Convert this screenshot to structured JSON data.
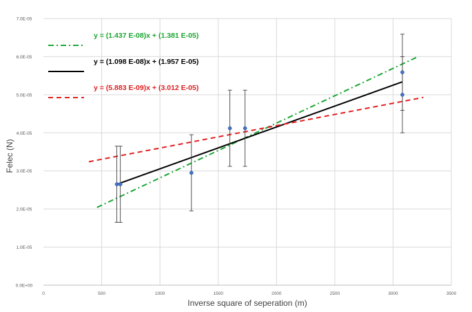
{
  "chart_data": {
    "type": "scatter",
    "title": "",
    "xlabel": "Inverse square of seperation (m)",
    "ylabel": "Felec (N)",
    "xlim": [
      0,
      3500
    ],
    "ylim": [
      0,
      7e-05
    ],
    "x_ticks": [
      0,
      500,
      1000,
      1500,
      2000,
      2500,
      3000,
      3500
    ],
    "x_tick_labels": [
      "0",
      "500",
      "1000",
      "1500",
      "2000",
      "2500",
      "3000",
      "3500"
    ],
    "y_ticks": [
      0,
      1e-05,
      2e-05,
      3e-05,
      4e-05,
      5e-05,
      6e-05,
      7e-05
    ],
    "y_tick_labels": [
      "0.0E+00",
      "1.0E-05",
      "2.0E-05",
      "3.0E-05",
      "4.0E-05",
      "5.0E-05",
      "6.0E-05",
      "7.0E-05"
    ],
    "grid": true,
    "legend_position": "top-left",
    "marker_color": "#4472C4",
    "errorbar_color": "#404040",
    "points": [
      {
        "x": 630,
        "y": 2.65e-05,
        "err_low": 1.65e-05,
        "err_high": 3.65e-05
      },
      {
        "x": 660,
        "y": 2.65e-05,
        "err_low": 1.65e-05,
        "err_high": 3.65e-05
      },
      {
        "x": 1270,
        "y": 2.95e-05,
        "err_low": 1.95e-05,
        "err_high": 3.95e-05
      },
      {
        "x": 1600,
        "y": 4.12e-05,
        "err_low": 3.12e-05,
        "err_high": 5.12e-05
      },
      {
        "x": 1730,
        "y": 4.12e-05,
        "err_low": 3.12e-05,
        "err_high": 5.12e-05
      },
      {
        "x": 3080,
        "y": 5.59e-05,
        "err_low": 4.59e-05,
        "err_high": 6.59e-05
      },
      {
        "x": 3080,
        "y": 5e-05,
        "err_low": 4e-05,
        "err_high": 6e-05
      }
    ],
    "series": [
      {
        "label": "y = (1.437 E-08)x + (1.381 E-05)",
        "slope": 1.437e-08,
        "intercept": 1.381e-05,
        "x_range": [
          460,
          3220
        ],
        "color": "#1BA532",
        "style": "dash-dot"
      },
      {
        "label": "y = (1.098 E-08)x + (1.957 E-05)",
        "slope": 1.098e-08,
        "intercept": 1.957e-05,
        "x_range": [
          630,
          3080
        ],
        "color": "#000000",
        "style": "solid"
      },
      {
        "label": "y = (5.883 E-09)x + (3.012 E-05)",
        "slope": 5.883e-09,
        "intercept": 3.012e-05,
        "x_range": [
          390,
          3260
        ],
        "color": "#E01F1F",
        "style": "dashed"
      }
    ]
  }
}
